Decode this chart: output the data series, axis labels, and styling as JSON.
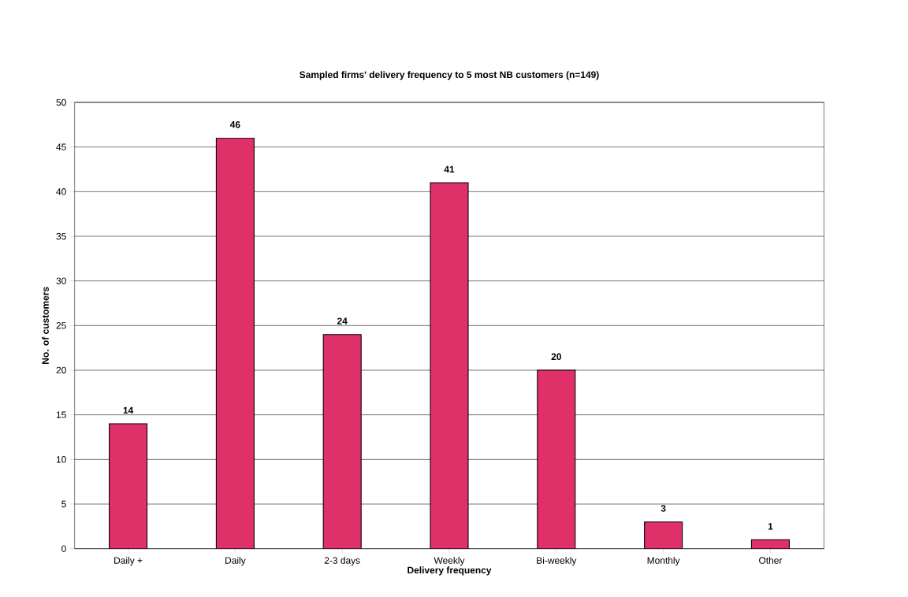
{
  "chart_data": {
    "type": "bar",
    "title": "Sampled firms' delivery frequency to 5 most NB customers (n=149)",
    "xlabel": "Delivery frequency",
    "ylabel": "No. of customers",
    "categories": [
      "Daily +",
      "Daily",
      "2-3 days",
      "Weekly",
      "Bi-weekly",
      "Monthly",
      "Other"
    ],
    "values": [
      14,
      46,
      24,
      41,
      20,
      3,
      1
    ],
    "color": "#e0306a",
    "ylim": [
      0,
      50
    ],
    "yticks": [
      0,
      5,
      10,
      15,
      20,
      25,
      30,
      35,
      40,
      45,
      50
    ],
    "grid": "y",
    "data_labels": true
  }
}
